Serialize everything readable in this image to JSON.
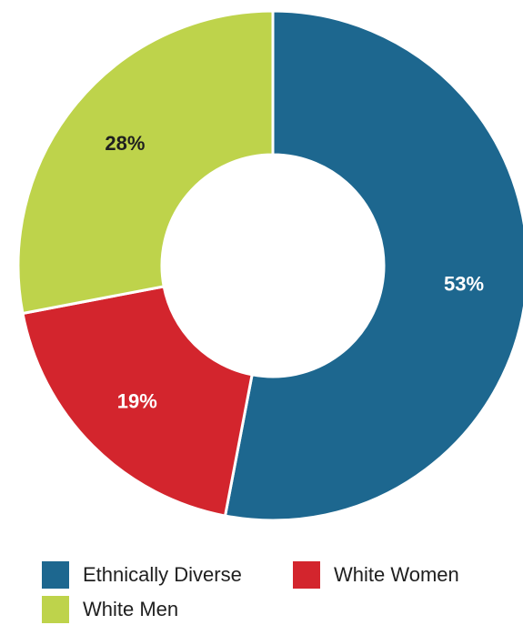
{
  "chart_data": {
    "type": "pie",
    "variant": "donut",
    "categories": [
      "Ethnically Diverse",
      "White Women",
      "White Men"
    ],
    "values": [
      53,
      19,
      28
    ],
    "value_labels": [
      "53%",
      "19%",
      "28%"
    ],
    "colors": [
      "#1d678f",
      "#d3252d",
      "#bed34b"
    ],
    "label_colors": [
      "#ffffff",
      "#ffffff",
      "#1f1f1f"
    ],
    "start_angle_deg": 0,
    "direction": "clockwise",
    "legend_position": "bottom",
    "title": ""
  },
  "legend": {
    "items": [
      {
        "label": "Ethnically Diverse",
        "color": "#1d678f"
      },
      {
        "label": "White Women",
        "color": "#d3252d"
      },
      {
        "label": "White Men",
        "color": "#bed34b"
      }
    ]
  }
}
